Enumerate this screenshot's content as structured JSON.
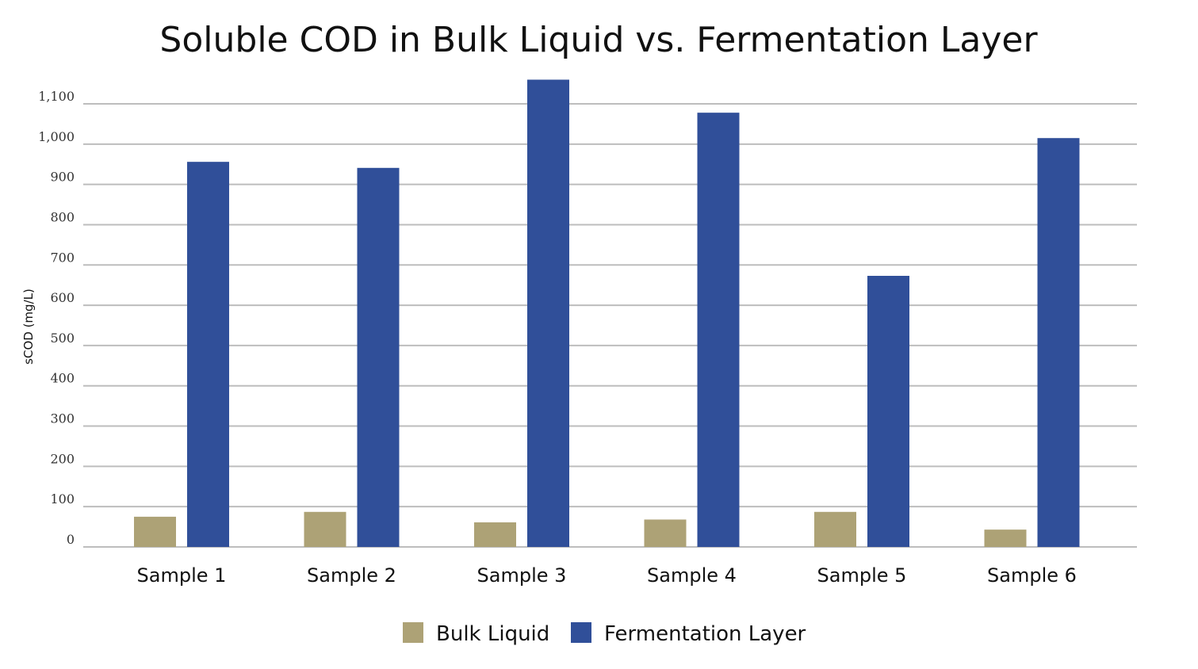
{
  "chart_data": {
    "type": "bar",
    "title": "Soluble COD in Bulk Liquid vs. Fermentation Layer",
    "xlabel": "",
    "ylabel": "sCOD (mg/L)",
    "ylim": [
      0,
      1160
    ],
    "yticks": [
      "0",
      "100",
      "200",
      "300",
      "400",
      "500",
      "600",
      "700",
      "800",
      "900",
      "1,000",
      "1,100"
    ],
    "ytick_values": [
      0,
      100,
      200,
      300,
      400,
      500,
      600,
      700,
      800,
      900,
      1000,
      1100
    ],
    "categories": [
      "Sample 1",
      "Sample 2",
      "Sample 3",
      "Sample 4",
      "Sample 5",
      "Sample 6"
    ],
    "series": [
      {
        "name": "Bulk Liquid",
        "color": "#ada276",
        "values": [
          75,
          87,
          61,
          68,
          87,
          43
        ]
      },
      {
        "name": "Fermentation Layer",
        "color": "#304f99",
        "values": [
          956,
          941,
          1160,
          1078,
          673,
          1015
        ]
      }
    ],
    "grid": true,
    "legend_position": "bottom-center"
  }
}
